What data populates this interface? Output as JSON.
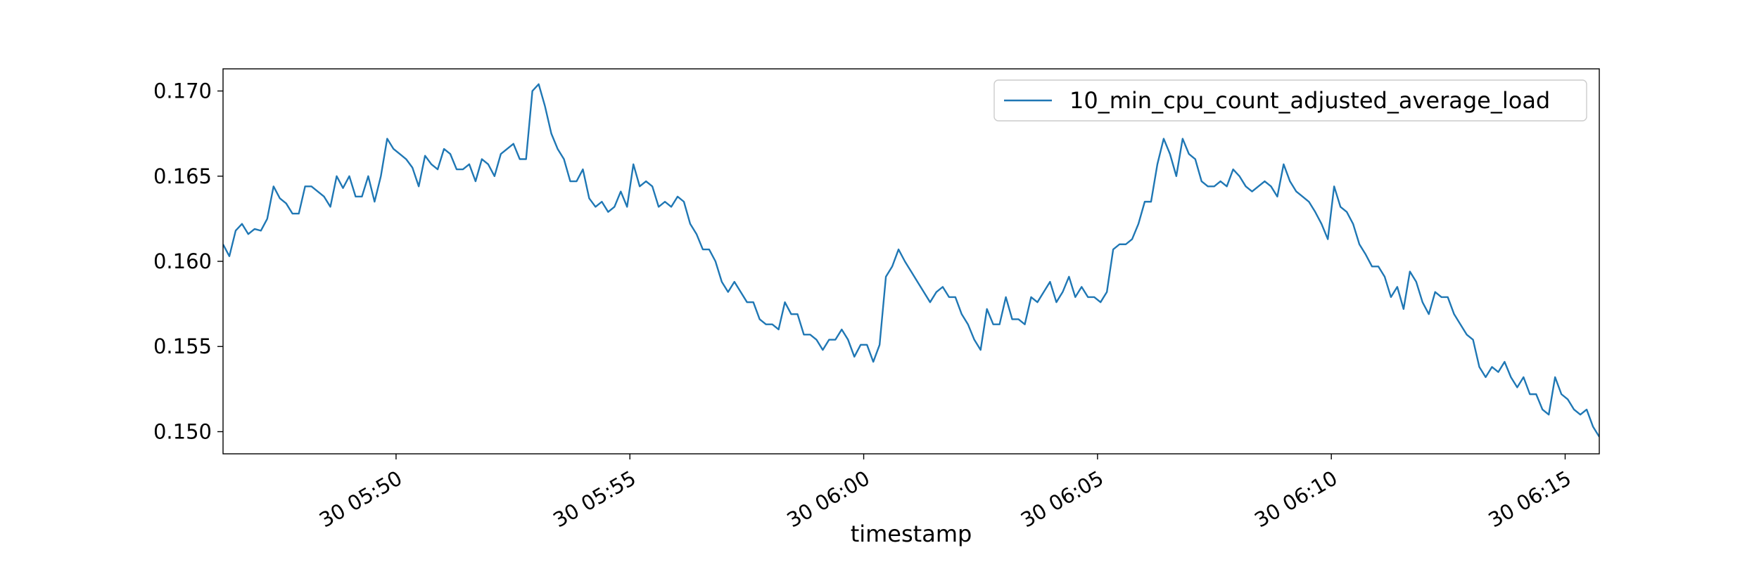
{
  "chart_data": {
    "type": "line",
    "xlabel": "timestamp",
    "legend": "upper right",
    "xlim": [
      346.3,
      375.73
    ],
    "xticks": [
      {
        "value": 350,
        "label": "30 05:50"
      },
      {
        "value": 355,
        "label": "30 05:55"
      },
      {
        "value": 360,
        "label": "30 06:00"
      },
      {
        "value": 365,
        "label": "30 06:05"
      },
      {
        "value": 370,
        "label": "30 06:10"
      },
      {
        "value": 375,
        "label": "30 06:15"
      }
    ],
    "ylim": [
      0.1487,
      0.1713
    ],
    "yticks": [
      {
        "value": 0.15,
        "label": "0.150"
      },
      0.155,
      {
        "value": 0.16,
        "label": "0.160"
      },
      0.165,
      {
        "value": 0.17,
        "label": "0.170"
      }
    ],
    "x": [
      346.3,
      346.435,
      346.57,
      346.705,
      346.84,
      346.975,
      347.11,
      347.245,
      347.38,
      347.515,
      347.65,
      347.785,
      347.92,
      348.055,
      348.19,
      348.325,
      348.46,
      348.595,
      348.73,
      348.865,
      349,
      349.135,
      349.27,
      349.405,
      349.54,
      349.675,
      349.81,
      349.945,
      350.08,
      350.215,
      350.35,
      350.485,
      350.62,
      350.755,
      350.89,
      351.025,
      351.16,
      351.295,
      351.43,
      351.565,
      351.7,
      351.835,
      351.97,
      352.105,
      352.24,
      352.375,
      352.51,
      352.645,
      352.78,
      352.915,
      353.05,
      353.185,
      353.32,
      353.455,
      353.59,
      353.725,
      353.86,
      353.995,
      354.13,
      354.265,
      354.4,
      354.535,
      354.67,
      354.805,
      354.94,
      355.075,
      355.21,
      355.345,
      355.48,
      355.615,
      355.75,
      355.885,
      356.02,
      356.155,
      356.29,
      356.425,
      356.56,
      356.695,
      356.83,
      356.965,
      357.1,
      357.235,
      357.37,
      357.505,
      357.64,
      357.775,
      357.91,
      358.045,
      358.18,
      358.315,
      358.45,
      358.585,
      358.72,
      358.855,
      358.99,
      359.125,
      359.26,
      359.395,
      359.53,
      359.665,
      359.8,
      359.935,
      360.07,
      360.205,
      360.34,
      360.475,
      360.61,
      360.745,
      360.88,
      361.015,
      361.15,
      361.285,
      361.42,
      361.555,
      361.69,
      361.825,
      361.96,
      362.095,
      362.23,
      362.365,
      362.5,
      362.635,
      362.77,
      362.905,
      363.04,
      363.175,
      363.31,
      363.445,
      363.58,
      363.715,
      363.85,
      363.985,
      364.12,
      364.255,
      364.39,
      364.525,
      364.66,
      364.795,
      364.93,
      365.065,
      365.2,
      365.335,
      365.47,
      365.605,
      365.74,
      365.875,
      366.01,
      366.145,
      366.28,
      366.415,
      366.55,
      366.685,
      366.82,
      366.955,
      367.09,
      367.225,
      367.36,
      367.495,
      367.63,
      367.765,
      367.9,
      368.035,
      368.17,
      368.305,
      368.44,
      368.575,
      368.71,
      368.845,
      368.98,
      369.115,
      369.25,
      369.385,
      369.52,
      369.655,
      369.79,
      369.925,
      370.06,
      370.195,
      370.33,
      370.465,
      370.6,
      370.735,
      370.87,
      371.005,
      371.14,
      371.275,
      371.41,
      371.545,
      371.68,
      371.815,
      371.95,
      372.085,
      372.22,
      372.355,
      372.49,
      372.625,
      372.76,
      372.895,
      373.03,
      373.165,
      373.3,
      373.435,
      373.57,
      373.705,
      373.84,
      373.975,
      374.11,
      374.245,
      374.38,
      374.515,
      374.65,
      374.785,
      374.92,
      375.055,
      375.19,
      375.325,
      375.46,
      375.595,
      375.73
    ],
    "series": [
      {
        "name": "10_min_cpu_count_adjusted_average_load",
        "color": "#1f77b4",
        "values": [
          0.161,
          0.1603,
          0.1618,
          0.1622,
          0.1616,
          0.1619,
          0.1618,
          0.1625,
          0.1644,
          0.1637,
          0.1634,
          0.1628,
          0.1628,
          0.1644,
          0.1644,
          0.1641,
          0.1638,
          0.1632,
          0.165,
          0.1643,
          0.165,
          0.1638,
          0.1638,
          0.165,
          0.1635,
          0.165,
          0.1672,
          0.1666,
          0.1663,
          0.166,
          0.1655,
          0.1644,
          0.1662,
          0.1657,
          0.1654,
          0.1666,
          0.1663,
          0.1654,
          0.1654,
          0.1657,
          0.1647,
          0.166,
          0.1657,
          0.165,
          0.1663,
          0.1666,
          0.1669,
          0.166,
          0.166,
          0.17,
          0.1704,
          0.1691,
          0.1675,
          0.1666,
          0.166,
          0.1647,
          0.1647,
          0.1654,
          0.1637,
          0.1632,
          0.1635,
          0.1629,
          0.1632,
          0.1641,
          0.1632,
          0.1657,
          0.1644,
          0.1647,
          0.1644,
          0.1632,
          0.1635,
          0.1632,
          0.1638,
          0.1635,
          0.1622,
          0.1616,
          0.1607,
          0.1607,
          0.16,
          0.1588,
          0.1582,
          0.1588,
          0.1582,
          0.1576,
          0.1576,
          0.1566,
          0.1563,
          0.1563,
          0.156,
          0.1576,
          0.1569,
          0.1569,
          0.1557,
          0.1557,
          0.1554,
          0.1548,
          0.1554,
          0.1554,
          0.156,
          0.1554,
          0.1544,
          0.1551,
          0.1551,
          0.1541,
          0.1551,
          0.1591,
          0.1597,
          0.1607,
          0.16,
          0.1594,
          0.1588,
          0.1582,
          0.1576,
          0.1582,
          0.1585,
          0.1579,
          0.1579,
          0.1569,
          0.1563,
          0.1554,
          0.1548,
          0.1572,
          0.1563,
          0.1563,
          0.1579,
          0.1566,
          0.1566,
          0.1563,
          0.1579,
          0.1576,
          0.1582,
          0.1588,
          0.1576,
          0.1582,
          0.1591,
          0.1579,
          0.1585,
          0.1579,
          0.1579,
          0.1576,
          0.1582,
          0.1607,
          0.161,
          0.161,
          0.1613,
          0.1622,
          0.1635,
          0.1635,
          0.1657,
          0.1672,
          0.1663,
          0.165,
          0.1672,
          0.1663,
          0.166,
          0.1647,
          0.1644,
          0.1644,
          0.1647,
          0.1644,
          0.1654,
          0.165,
          0.1644,
          0.1641,
          0.1644,
          0.1647,
          0.1644,
          0.1638,
          0.1657,
          0.1647,
          0.1641,
          0.1638,
          0.1635,
          0.1629,
          0.1622,
          0.1613,
          0.1644,
          0.1632,
          0.1629,
          0.1622,
          0.161,
          0.1604,
          0.1597,
          0.1597,
          0.1591,
          0.1579,
          0.1585,
          0.1572,
          0.1594,
          0.1588,
          0.1576,
          0.1569,
          0.1582,
          0.1579,
          0.1579,
          0.1569,
          0.1563,
          0.1557,
          0.1554,
          0.1538,
          0.1532,
          0.1538,
          0.1535,
          0.1541,
          0.1532,
          0.1526,
          0.1532,
          0.1522,
          0.1522,
          0.1513,
          0.151,
          0.1532,
          0.1522,
          0.1519,
          0.1513,
          0.151,
          0.1513,
          0.1503,
          0.1497
        ]
      }
    ]
  }
}
